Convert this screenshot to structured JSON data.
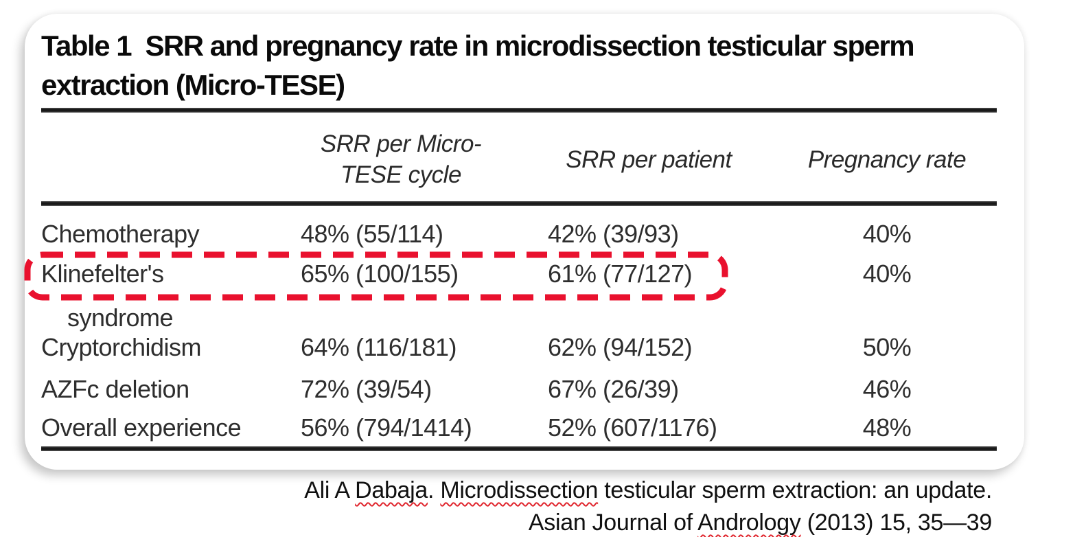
{
  "colors": {
    "background": "#ffffff",
    "highlight_red": "#e9112e",
    "rule": "#191919",
    "body_text": "#2e2e2e",
    "title_text": "#0a0a0a"
  },
  "card": {
    "title": "Table 1  SRR and pregnancy rate in microdissection testicular sperm extraction (Micro-TESE)",
    "table": {
      "headers": [
        {
          "lines": []
        },
        {
          "lines": [
            "SRR per Micro-",
            "TESE cycle"
          ]
        },
        {
          "lines": [
            "SRR per patient"
          ]
        },
        {
          "lines": [
            "Pregnancy rate"
          ]
        }
      ],
      "rows": [
        {
          "condition": "Chemotherapy",
          "srr_per_micro_tese_cycle": "48% (55/114)",
          "srr_per_patient": "42% (39/93)",
          "pregnancy_rate": "40%",
          "highlighted": false
        },
        {
          "condition": "Klinefelter's",
          "condition_line2": "syndrome",
          "srr_per_micro_tese_cycle": "65% (100/155)",
          "srr_per_patient": "61% (77/127)",
          "pregnancy_rate": "40%",
          "highlighted": true
        },
        {
          "condition": "Cryptorchidism",
          "srr_per_micro_tese_cycle": "64% (116/181)",
          "srr_per_patient": "62% (94/152)",
          "pregnancy_rate": "50%",
          "highlighted": false
        },
        {
          "condition": "AZFc deletion",
          "srr_per_micro_tese_cycle": "72% (39/54)",
          "srr_per_patient": "67% (26/39)",
          "pregnancy_rate": "46%",
          "highlighted": false
        },
        {
          "condition": "Overall experience",
          "srr_per_micro_tese_cycle": "56% (794/1414)",
          "srr_per_patient": "52% (607/1176)",
          "pregnancy_rate": "48%",
          "highlighted": false
        }
      ]
    }
  },
  "citation": {
    "line1": [
      {
        "text": "Ali A "
      },
      {
        "text": "Dabaja",
        "spellcheck_underline": true
      },
      {
        "text": ". "
      },
      {
        "text": "Microdissection",
        "spellcheck_underline": true
      },
      {
        "text": " testicular sperm extraction: an update."
      }
    ],
    "line2": [
      {
        "text": "Asian Journal of "
      },
      {
        "text": "Andrology",
        "spellcheck_underline": true
      },
      {
        "text": " (2013) 15, 35—39"
      }
    ]
  }
}
